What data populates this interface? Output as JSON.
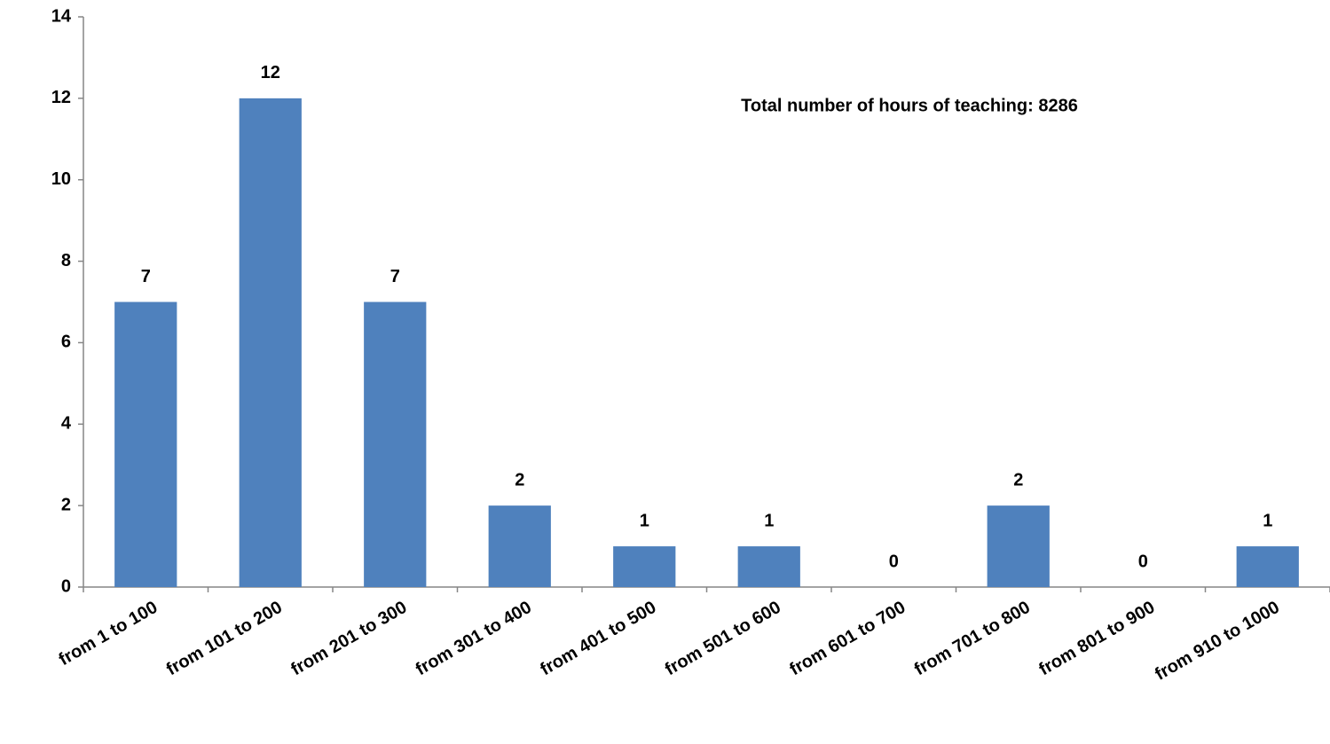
{
  "chart_data": {
    "type": "bar",
    "categories": [
      "from 1 to 100",
      "from 101 to 200",
      "from 201 to 300",
      "from 301 to 400",
      "from 401 to 500",
      "from 501 to 600",
      "from 601 to 700",
      "from 701 to 800",
      "from 801 to 900",
      "from 910 to 1000"
    ],
    "values": [
      7,
      12,
      7,
      2,
      1,
      1,
      0,
      2,
      0,
      1
    ],
    "color": "#4f81bd",
    "ylim": [
      0,
      14
    ],
    "yticks": [
      0,
      2,
      4,
      6,
      8,
      10,
      12,
      14
    ],
    "grid": false,
    "annotation": "Total number of hours of teaching: 8286"
  }
}
